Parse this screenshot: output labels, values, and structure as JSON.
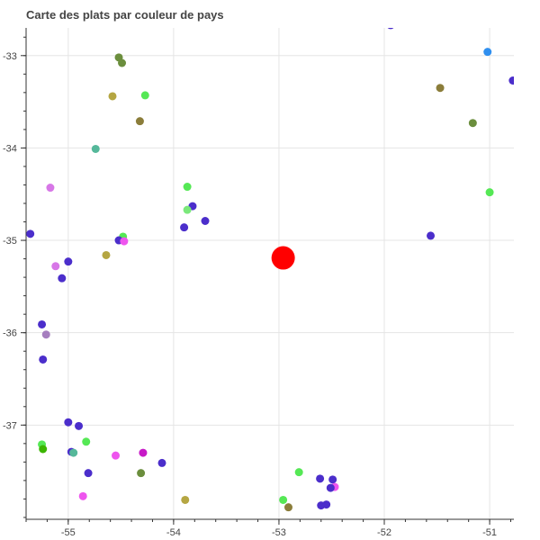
{
  "chart_data": {
    "type": "scatter",
    "title": "Carte des plats par couleur de pays",
    "xlabel": "",
    "ylabel": "",
    "xlim": [
      -55.4,
      -50.77
    ],
    "ylim": [
      -38.02,
      -32.7
    ],
    "x_ticks": [
      -55,
      -54,
      -53,
      -52,
      -51
    ],
    "y_ticks": [
      -33,
      -34,
      -35,
      -36,
      -37
    ],
    "grid": true,
    "legend": "none",
    "points": [
      {
        "x": -54.52,
        "y": -33.02,
        "color": "#6b8e3d",
        "size": 9
      },
      {
        "x": -54.49,
        "y": -33.08,
        "color": "#6b8e3d",
        "size": 9
      },
      {
        "x": -54.58,
        "y": -33.44,
        "color": "#b5a642",
        "size": 9
      },
      {
        "x": -54.27,
        "y": -33.43,
        "color": "#55e855",
        "size": 9
      },
      {
        "x": -54.32,
        "y": -33.71,
        "color": "#8b7d3a",
        "size": 9
      },
      {
        "x": -54.74,
        "y": -34.01,
        "color": "#55b89a",
        "size": 9
      },
      {
        "x": -51.94,
        "y": -32.67,
        "color": "#4b2ecb",
        "size": 9
      },
      {
        "x": -51.02,
        "y": -32.96,
        "color": "#2f8fef",
        "size": 9
      },
      {
        "x": -50.78,
        "y": -33.27,
        "color": "#4b2ecb",
        "size": 9
      },
      {
        "x": -51.47,
        "y": -33.35,
        "color": "#8b7d3a",
        "size": 9
      },
      {
        "x": -51.16,
        "y": -33.73,
        "color": "#6b8e3d",
        "size": 9
      },
      {
        "x": -51.0,
        "y": -34.48,
        "color": "#55e855",
        "size": 9
      },
      {
        "x": -55.17,
        "y": -34.43,
        "color": "#d777e7",
        "size": 9
      },
      {
        "x": -53.87,
        "y": -34.42,
        "color": "#55e855",
        "size": 9
      },
      {
        "x": -53.82,
        "y": -34.63,
        "color": "#4b2ecb",
        "size": 9
      },
      {
        "x": -53.87,
        "y": -34.67,
        "color": "#7be87b",
        "size": 9
      },
      {
        "x": -53.7,
        "y": -34.79,
        "color": "#4b2ecb",
        "size": 9
      },
      {
        "x": -53.9,
        "y": -34.86,
        "color": "#4b2ecb",
        "size": 9
      },
      {
        "x": -55.36,
        "y": -34.93,
        "color": "#4b2ecb",
        "size": 9
      },
      {
        "x": -54.48,
        "y": -34.96,
        "color": "#55e855",
        "size": 9
      },
      {
        "x": -54.52,
        "y": -35.0,
        "color": "#4b2ecb",
        "size": 9
      },
      {
        "x": -54.47,
        "y": -35.01,
        "color": "#ee55ee",
        "size": 9
      },
      {
        "x": -51.56,
        "y": -34.95,
        "color": "#4b2ecb",
        "size": 9
      },
      {
        "x": -54.64,
        "y": -35.16,
        "color": "#b5a642",
        "size": 9
      },
      {
        "x": -55.0,
        "y": -35.23,
        "color": "#4b2ecb",
        "size": 9
      },
      {
        "x": -55.12,
        "y": -35.28,
        "color": "#d777e7",
        "size": 9
      },
      {
        "x": -55.06,
        "y": -35.41,
        "color": "#4b2ecb",
        "size": 9
      },
      {
        "x": -52.96,
        "y": -35.19,
        "color": "#ff0000",
        "size": 26
      },
      {
        "x": -55.25,
        "y": -35.91,
        "color": "#4b2ecb",
        "size": 9
      },
      {
        "x": -55.21,
        "y": -36.02,
        "color": "#a67fbf",
        "size": 9
      },
      {
        "x": -55.46,
        "y": -36.27,
        "color": "#4b2ecb",
        "size": 9
      },
      {
        "x": -55.24,
        "y": -36.29,
        "color": "#4b2ecb",
        "size": 9
      },
      {
        "x": -55.0,
        "y": -36.97,
        "color": "#4b2ecb",
        "size": 9
      },
      {
        "x": -54.9,
        "y": -37.01,
        "color": "#4b2ecb",
        "size": 9
      },
      {
        "x": -55.25,
        "y": -37.21,
        "color": "#55e855",
        "size": 9
      },
      {
        "x": -55.24,
        "y": -37.26,
        "color": "#3cb500",
        "size": 9
      },
      {
        "x": -54.83,
        "y": -37.18,
        "color": "#55e855",
        "size": 9
      },
      {
        "x": -54.97,
        "y": -37.29,
        "color": "#4b2ecb",
        "size": 9
      },
      {
        "x": -54.95,
        "y": -37.3,
        "color": "#55b89a",
        "size": 9
      },
      {
        "x": -54.55,
        "y": -37.33,
        "color": "#ee55ee",
        "size": 9
      },
      {
        "x": -54.29,
        "y": -37.3,
        "color": "#c71ac7",
        "size": 9
      },
      {
        "x": -54.11,
        "y": -37.41,
        "color": "#4b2ecb",
        "size": 9
      },
      {
        "x": -54.81,
        "y": -37.52,
        "color": "#4b2ecb",
        "size": 9
      },
      {
        "x": -54.31,
        "y": -37.52,
        "color": "#6b8e3d",
        "size": 9
      },
      {
        "x": -52.81,
        "y": -37.51,
        "color": "#55e855",
        "size": 9
      },
      {
        "x": -52.61,
        "y": -37.58,
        "color": "#4b2ecb",
        "size": 9
      },
      {
        "x": -52.49,
        "y": -37.59,
        "color": "#4b2ecb",
        "size": 9
      },
      {
        "x": -52.47,
        "y": -37.67,
        "color": "#ee55ee",
        "size": 9
      },
      {
        "x": -52.51,
        "y": -37.68,
        "color": "#4b2ecb",
        "size": 9
      },
      {
        "x": -54.86,
        "y": -37.77,
        "color": "#ee55ee",
        "size": 9
      },
      {
        "x": -53.89,
        "y": -37.81,
        "color": "#b5a642",
        "size": 9
      },
      {
        "x": -52.96,
        "y": -37.81,
        "color": "#55e855",
        "size": 9
      },
      {
        "x": -52.91,
        "y": -37.89,
        "color": "#8b7d3a",
        "size": 9
      },
      {
        "x": -52.6,
        "y": -37.87,
        "color": "#4b2ecb",
        "size": 9
      },
      {
        "x": -52.55,
        "y": -37.86,
        "color": "#4b2ecb",
        "size": 9
      }
    ]
  }
}
